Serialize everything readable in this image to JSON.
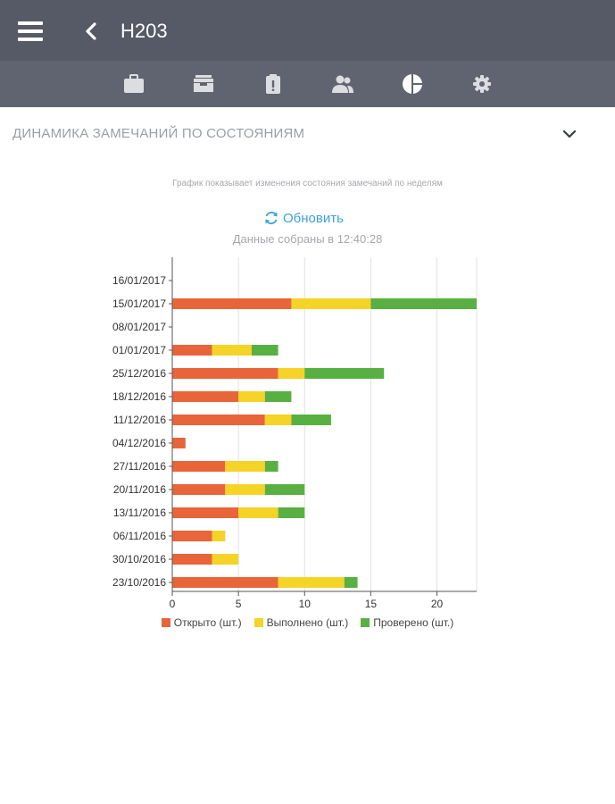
{
  "header": {
    "title": "H203"
  },
  "tabs": [
    {
      "icon": "briefcase-icon"
    },
    {
      "icon": "inbox-icon"
    },
    {
      "icon": "clipboard-alert-icon"
    },
    {
      "icon": "users-icon"
    },
    {
      "icon": "pie-chart-icon",
      "active": true
    },
    {
      "icon": "gear-icon"
    }
  ],
  "section": {
    "title": "ДИНАМИКА ЗАМЕЧАНИЙ ПО СОСТОЯНИЯМ"
  },
  "chart_info": {
    "description": "График показывает изменения состояния замечаний по неделям",
    "refresh_label": "Обновить",
    "collected_label": "Данные собраны в 12:40:28"
  },
  "colors": {
    "open": "#e8653a",
    "done": "#f5d327",
    "checked": "#59b042",
    "accent": "#3aa2dc"
  },
  "chart_data": {
    "type": "bar",
    "orientation": "horizontal",
    "stacked": true,
    "categories": [
      "16/01/2017",
      "15/01/2017",
      "08/01/2017",
      "01/01/2017",
      "25/12/2016",
      "18/12/2016",
      "11/12/2016",
      "04/12/2016",
      "27/11/2016",
      "20/11/2016",
      "13/11/2016",
      "06/11/2016",
      "30/10/2016",
      "23/10/2016"
    ],
    "series": [
      {
        "name": "Открыто (шт.)",
        "color": "#e8653a",
        "values": [
          0,
          9,
          0,
          3,
          8,
          5,
          7,
          1,
          4,
          4,
          5,
          3,
          3,
          8
        ]
      },
      {
        "name": "Выполнено (шт.)",
        "color": "#f5d327",
        "values": [
          0,
          6,
          0,
          3,
          2,
          2,
          2,
          0,
          3,
          3,
          3,
          1,
          2,
          5
        ]
      },
      {
        "name": "Проверено (шт.)",
        "color": "#59b042",
        "values": [
          0,
          8,
          0,
          2,
          6,
          2,
          3,
          0,
          1,
          3,
          2,
          0,
          0,
          1
        ]
      }
    ],
    "xlim": [
      0,
      23
    ],
    "xticks": [
      0,
      5,
      10,
      15,
      20
    ],
    "grid": true,
    "legend": "bottom"
  }
}
